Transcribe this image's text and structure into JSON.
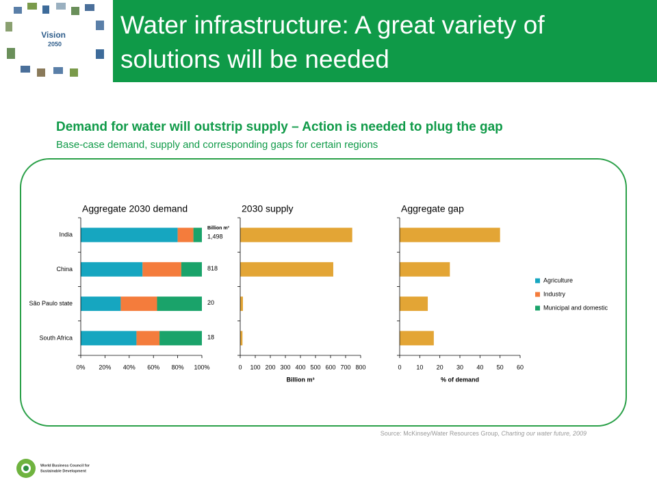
{
  "slide": {
    "title_line1": "Water infrastructure: A great variety of",
    "title_line2": "solutions will be needed",
    "logo_text": "Vision",
    "logo_year": "2050",
    "heading": "Demand for water will outstrip supply – Action is needed to plug the gap",
    "subheading": "Base-case demand, supply and corresponding gaps for certain regions",
    "source": "Source: McKinsey/Water Resources Group, ",
    "source_italic": "Charting our water future, 2009",
    "org_line1": "World Business Council for",
    "org_line2": "Sustainable Development"
  },
  "chart_data": [
    {
      "type": "bar",
      "orientation": "horizontal",
      "stacked": true,
      "title": "Aggregate 2030 demand",
      "categories": [
        "India",
        "China",
        "São Paulo state",
        "South Africa"
      ],
      "series": [
        {
          "name": "Agriculture",
          "color": "#16a6c0",
          "values": [
            80,
            51,
            33,
            46
          ]
        },
        {
          "name": "Industry",
          "color": "#f47c3c",
          "values": [
            13,
            32,
            30,
            19
          ]
        },
        {
          "name": "Municipal and domestic",
          "color": "#1aa36a",
          "values": [
            7,
            17,
            37,
            35
          ]
        }
      ],
      "totals": {
        "name": "Billion m³",
        "values": [
          1498,
          818,
          20,
          18
        ],
        "value_labels": [
          "1,498",
          "818",
          "20",
          "18"
        ]
      },
      "xlim": [
        0,
        100
      ],
      "xticks": [
        {
          "value": 0,
          "label": "0%"
        },
        {
          "value": 20,
          "label": "20%"
        },
        {
          "value": 40,
          "label": "40%"
        },
        {
          "value": 60,
          "label": "60%"
        },
        {
          "value": 80,
          "label": "80%"
        },
        {
          "value": 100,
          "label": "100%"
        }
      ],
      "legend": "right"
    },
    {
      "type": "bar",
      "orientation": "horizontal",
      "title": "2030 supply",
      "values": [
        744,
        618,
        18,
        15
      ],
      "color": "#e3a535",
      "xlabel": "Billion m³",
      "xlim": [
        0,
        800
      ],
      "xticks": [
        0,
        100,
        200,
        300,
        400,
        500,
        600,
        700,
        800
      ]
    },
    {
      "type": "bar",
      "orientation": "horizontal",
      "title": "Aggregate gap",
      "values": [
        50,
        25,
        14,
        17
      ],
      "color": "#e3a535",
      "xlabel": "% of demand",
      "xlim": [
        0,
        60
      ],
      "xticks": [
        0,
        10,
        20,
        30,
        40,
        50,
        60
      ]
    }
  ]
}
